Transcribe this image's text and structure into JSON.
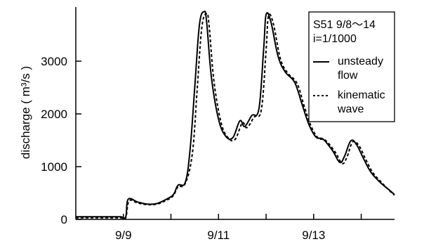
{
  "chart_data": {
    "type": "line",
    "title": "",
    "xlabel": "",
    "ylabel": "discharge ( m³/s )",
    "ylim": [
      0,
      4000
    ],
    "xlim": [
      8.0,
      14.7
    ],
    "y_ticks": [
      0,
      1000,
      2000,
      3000
    ],
    "y_tick_labels": [
      "0",
      "1000",
      "2000",
      "3000"
    ],
    "x_ticks": [
      9,
      10,
      11,
      12,
      13,
      14
    ],
    "x_tick_labels": [
      "9/9",
      "9/11",
      "9/13"
    ],
    "x_tick_label_positions": [
      9,
      11,
      13
    ],
    "grid": false,
    "legend": {
      "placement": "top-right",
      "header_lines": [
        "S51 9/8～14",
        "i=1/1000"
      ],
      "entries": [
        {
          "lines": [
            "unsteady",
            "flow"
          ],
          "style": "solid"
        },
        {
          "lines": [
            "kinematic",
            "wave"
          ],
          "style": "dashed"
        }
      ]
    },
    "series": [
      {
        "name": "unsteady flow",
        "style": "solid",
        "x": [
          8.0,
          8.8,
          8.95,
          9.05,
          9.1,
          9.3,
          9.5,
          9.7,
          9.9,
          10.05,
          10.15,
          10.3,
          10.4,
          10.5,
          10.6,
          10.7,
          10.75,
          10.85,
          11.0,
          11.15,
          11.3,
          11.45,
          11.55,
          11.7,
          11.85,
          11.95,
          12.0,
          12.1,
          12.25,
          12.4,
          12.6,
          12.75,
          12.9,
          13.05,
          13.2,
          13.4,
          13.55,
          13.65,
          13.78,
          13.9,
          14.05,
          14.2,
          14.4,
          14.6,
          14.7
        ],
        "y": [
          50,
          50,
          50,
          50,
          380,
          330,
          290,
          300,
          380,
          470,
          650,
          700,
          1300,
          2500,
          3700,
          3940,
          3750,
          2700,
          1900,
          1580,
          1550,
          1870,
          1760,
          1970,
          2100,
          3250,
          3880,
          3750,
          3100,
          2800,
          2600,
          2200,
          1800,
          1560,
          1520,
          1300,
          1080,
          1200,
          1490,
          1420,
          1150,
          900,
          700,
          550,
          470
        ]
      },
      {
        "name": "kinematic wave",
        "style": "dashed",
        "x": [
          8.0,
          8.8,
          8.95,
          9.05,
          9.12,
          9.3,
          9.5,
          9.7,
          9.9,
          10.05,
          10.15,
          10.3,
          10.45,
          10.55,
          10.65,
          10.75,
          10.8,
          10.9,
          11.05,
          11.2,
          11.35,
          11.5,
          11.6,
          11.75,
          11.9,
          12.0,
          12.05,
          12.15,
          12.3,
          12.45,
          12.65,
          12.8,
          12.95,
          13.1,
          13.25,
          13.45,
          13.6,
          13.7,
          13.82,
          13.95,
          14.1,
          14.25,
          14.45,
          14.6,
          14.7
        ],
        "y": [
          30,
          30,
          30,
          30,
          350,
          310,
          280,
          290,
          360,
          450,
          620,
          680,
          1250,
          2450,
          3650,
          3900,
          3700,
          2650,
          1850,
          1550,
          1520,
          1830,
          1740,
          1940,
          2080,
          3200,
          3850,
          3720,
          3050,
          2780,
          2580,
          2150,
          1760,
          1540,
          1500,
          1280,
          1060,
          1180,
          1470,
          1400,
          1130,
          880,
          680,
          540,
          460
        ]
      }
    ]
  }
}
